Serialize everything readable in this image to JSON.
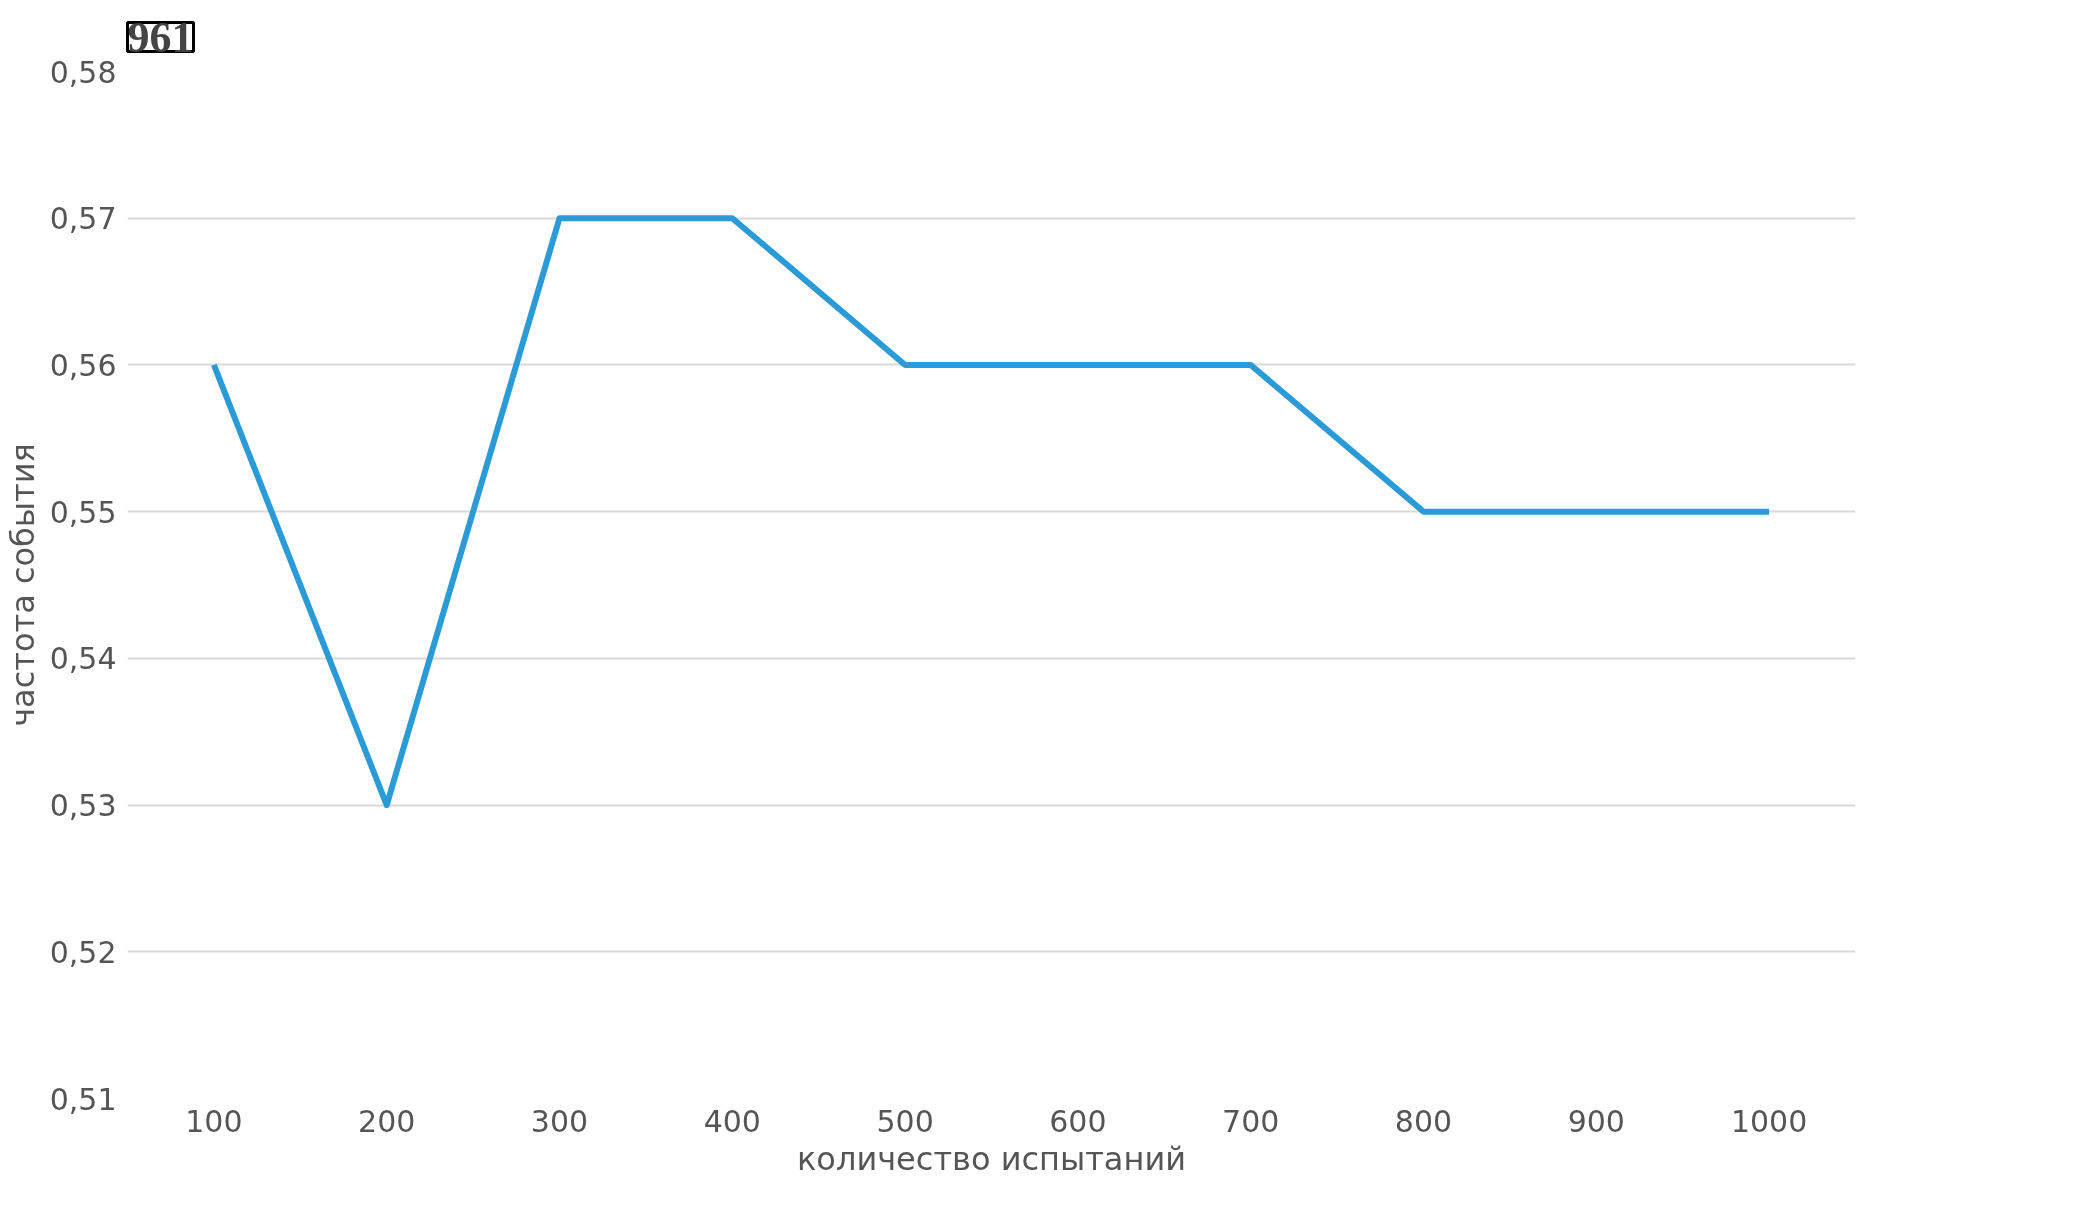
{
  "chart_data": {
    "type": "line",
    "title": "961",
    "xlabel": "количество испытаний",
    "ylabel": "частота события",
    "categories": [
      "100",
      "200",
      "300",
      "400",
      "500",
      "600",
      "700",
      "800",
      "900",
      "1000"
    ],
    "series": [
      {
        "color": "#2a9bd7",
        "values": [
          0.56,
          0.53,
          0.57,
          0.57,
          0.56,
          0.56,
          0.56,
          0.55,
          0.55,
          0.55
        ]
      }
    ],
    "ylim": [
      0.51,
      0.58
    ],
    "yticks": [
      {
        "value": 0.51,
        "label": "0,51"
      },
      {
        "value": 0.52,
        "label": "0,52"
      },
      {
        "value": 0.53,
        "label": "0,53"
      },
      {
        "value": 0.54,
        "label": "0,54"
      },
      {
        "value": 0.55,
        "label": "0,55"
      },
      {
        "value": 0.56,
        "label": "0,56"
      },
      {
        "value": 0.57,
        "label": "0,57"
      },
      {
        "value": 0.58,
        "label": "0,58"
      }
    ],
    "grid": "y",
    "marker": "none",
    "line_style": "solid"
  }
}
